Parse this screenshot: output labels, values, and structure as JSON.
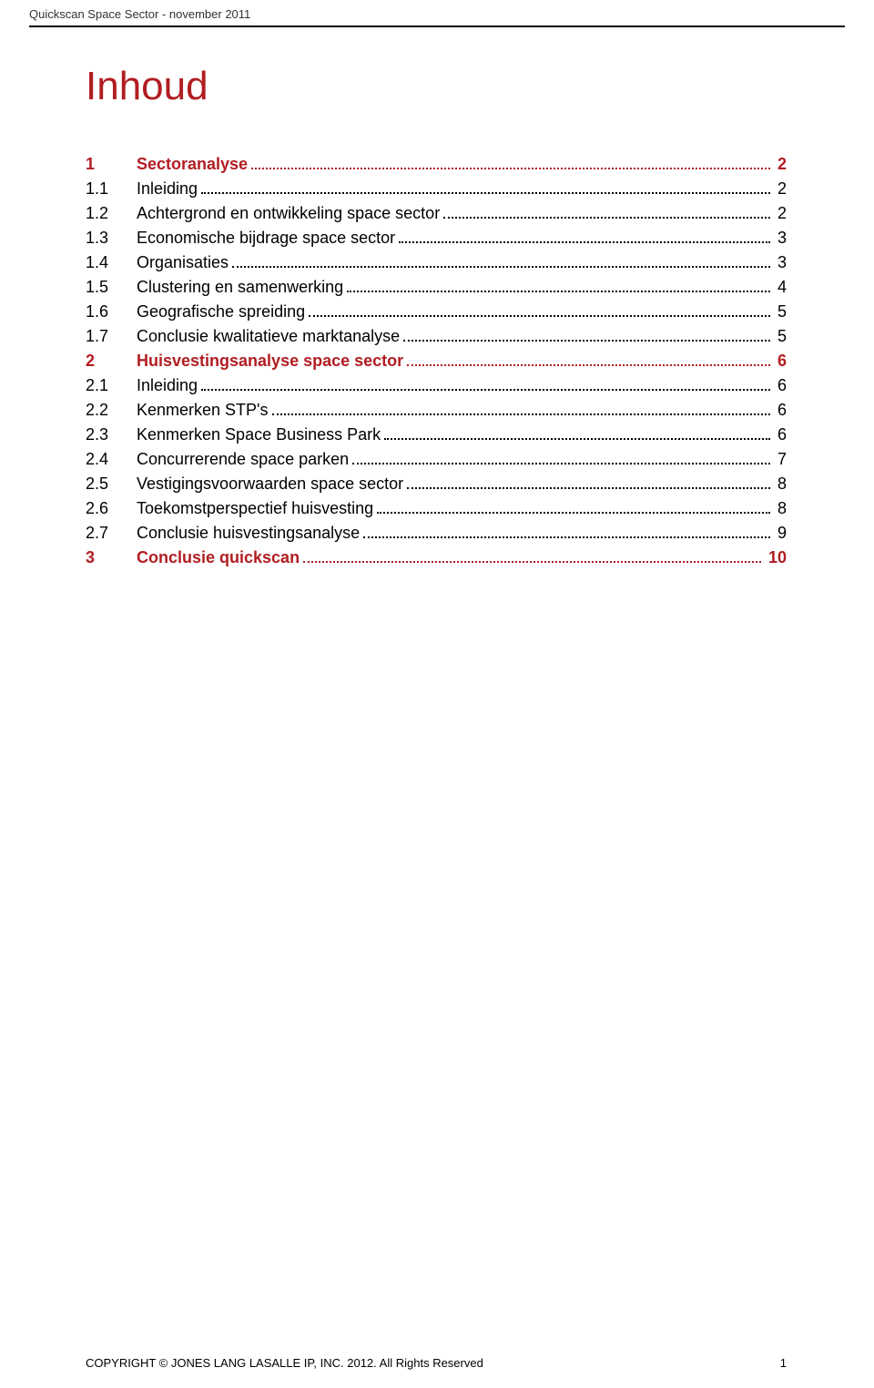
{
  "header": {
    "text": "Quickscan Space Sector - november 2011"
  },
  "title": "Inhoud",
  "colors": {
    "accent": "#b11d22",
    "text": "#000000",
    "background": "#ffffff"
  },
  "toc": [
    {
      "num": "1",
      "label": "Sectoranalyse",
      "page": "2",
      "level": "top"
    },
    {
      "num": "1.1",
      "label": "Inleiding",
      "page": "2",
      "level": "sub"
    },
    {
      "num": "1.2",
      "label": "Achtergrond en ontwikkeling space sector",
      "page": "2",
      "level": "sub"
    },
    {
      "num": "1.3",
      "label": "Economische bijdrage space sector",
      "page": "3",
      "level": "sub"
    },
    {
      "num": "1.4",
      "label": "Organisaties",
      "page": "3",
      "level": "sub"
    },
    {
      "num": "1.5",
      "label": "Clustering en samenwerking",
      "page": "4",
      "level": "sub"
    },
    {
      "num": "1.6",
      "label": "Geografische spreiding",
      "page": "5",
      "level": "sub"
    },
    {
      "num": "1.7",
      "label": "Conclusie kwalitatieve marktanalyse",
      "page": "5",
      "level": "sub"
    },
    {
      "num": "2",
      "label": "Huisvestingsanalyse space sector",
      "page": "6",
      "level": "top"
    },
    {
      "num": "2.1",
      "label": "Inleiding",
      "page": "6",
      "level": "sub"
    },
    {
      "num": "2.2",
      "label": "Kenmerken STP's",
      "page": "6",
      "level": "sub"
    },
    {
      "num": "2.3",
      "label": "Kenmerken Space Business Park",
      "page": "6",
      "level": "sub"
    },
    {
      "num": "2.4",
      "label": "Concurrerende space parken",
      "page": "7",
      "level": "sub"
    },
    {
      "num": "2.5",
      "label": "Vestigingsvoorwaarden space sector",
      "page": "8",
      "level": "sub"
    },
    {
      "num": "2.6",
      "label": "Toekomstperspectief huisvesting",
      "page": "8",
      "level": "sub"
    },
    {
      "num": "2.7",
      "label": "Conclusie huisvestingsanalyse",
      "page": "9",
      "level": "sub"
    },
    {
      "num": "3",
      "label": "Conclusie quickscan",
      "page": "10",
      "level": "top"
    }
  ],
  "footer": {
    "copyright": "COPYRIGHT © JONES LANG LASALLE IP, INC. 2012. All Rights Reserved",
    "page_number": "1"
  }
}
